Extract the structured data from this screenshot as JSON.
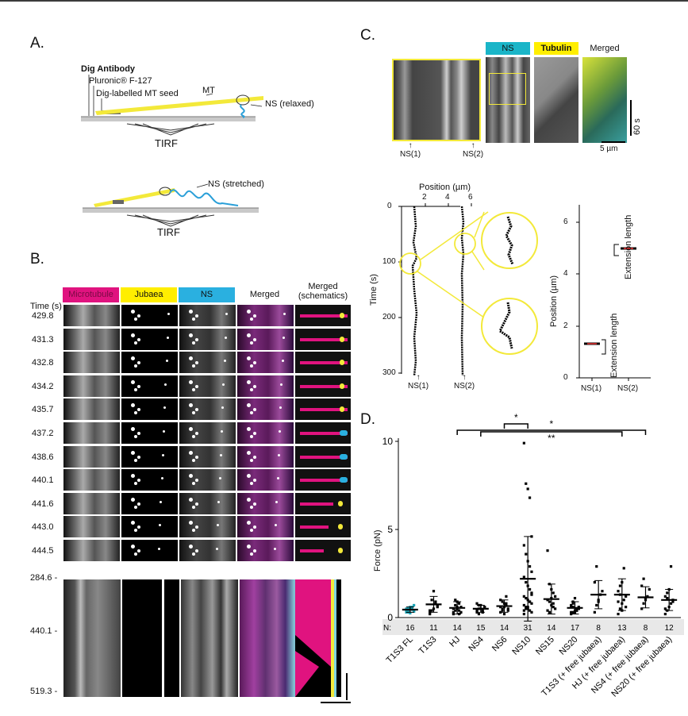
{
  "panelA": {
    "label": "A.",
    "dig_antibody": "Dig Antibody",
    "pluronic": "Pluronic® F-127",
    "mt_seed": "Dig-labelled MT seed",
    "mt": "MT",
    "ns_relaxed": "NS (relaxed)",
    "ns_stretched": "NS (stretched)",
    "tirf_top": "TIRF",
    "tirf_bottom": "TIRF"
  },
  "panelB": {
    "label": "B.",
    "time_header": "Time (s)",
    "columns": [
      "Microtubule",
      "Jubaea",
      "NS",
      "Merged",
      "Merged\n(schematics)"
    ],
    "column_colors": [
      "#e0137f",
      "#ffee00",
      "#2ab0e0",
      "#ffffff",
      "#ffffff"
    ],
    "times": [
      "429.8",
      "431.3",
      "432.8",
      "434.2",
      "435.7",
      "437.2",
      "438.6",
      "440.1",
      "441.6",
      "443.0",
      "444.5"
    ],
    "kymo_times": [
      "284.6",
      "440.1",
      "519.3"
    ]
  },
  "panelC": {
    "label": "C.",
    "channels": [
      "NS",
      "Tubulin",
      "Merged"
    ],
    "channel_colors": [
      "#1ab5c8",
      "#ffee00",
      "#ffffff"
    ],
    "ns1": "NS(1)",
    "ns2": "NS(2)",
    "scale_time": "60 s",
    "scale_length": "5 µm",
    "trace_plot": {
      "xlabel": "Position (µm)",
      "ylabel": "Time (s)",
      "xticks": [
        "2",
        "4",
        "6"
      ],
      "yticks": [
        "0",
        "100",
        "200",
        "300"
      ],
      "xlabels_bottom": [
        "NS(1)",
        "NS(2)"
      ]
    },
    "ext_plot": {
      "ylabel": "Position (µm)",
      "yticks": [
        "0",
        "2",
        "4",
        "6"
      ],
      "annot_top": "Extension length",
      "annot_bottom": "Extension length",
      "categories": [
        "NS(1)",
        "NS(2)"
      ]
    }
  },
  "panelD": {
    "label": "D.",
    "chart_data": {
      "type": "scatter",
      "ylabel": "Force (pN)",
      "ylim": [
        0,
        10
      ],
      "yticks": [
        "0",
        "5",
        "10"
      ],
      "n_label": "N:",
      "categories": [
        "T1S3 FL",
        "T1S3",
        "HJ",
        "NS4",
        "NS6",
        "NS10",
        "NS15",
        "NS20",
        "T1S3 (+ free jubaea)",
        "HJ (+ free jubaea)",
        "NS4 (+ free jubaea)",
        "NS20 (+ free jubaea)"
      ],
      "n": [
        "16",
        "11",
        "14",
        "15",
        "14",
        "31",
        "14",
        "17",
        "8",
        "13",
        "8",
        "12"
      ],
      "means": [
        0.45,
        0.75,
        0.55,
        0.5,
        0.65,
        2.2,
        1.05,
        0.55,
        1.3,
        1.3,
        1.15,
        1.0
      ],
      "sd": [
        0.15,
        0.45,
        0.35,
        0.2,
        0.35,
        2.4,
        0.85,
        0.35,
        0.8,
        0.9,
        0.6,
        0.6
      ],
      "points": [
        [
          0.3,
          0.4,
          0.5,
          0.6,
          0.35,
          0.45,
          0.55,
          0.25,
          0.5,
          0.7,
          0.4,
          0.3,
          0.6,
          0.45,
          0.35,
          0.5
        ],
        [
          0.2,
          0.4,
          1.5,
          0.8,
          0.6,
          0.3,
          1.0,
          0.5,
          0.9,
          0.7,
          0.4
        ],
        [
          0.2,
          0.4,
          0.6,
          0.8,
          0.3,
          0.5,
          0.7,
          0.9,
          0.4,
          0.6,
          0.3,
          1.0,
          0.5,
          0.2
        ],
        [
          0.3,
          0.5,
          0.7,
          0.4,
          0.6,
          0.8,
          0.2,
          0.5,
          0.3,
          0.6,
          0.4,
          0.7,
          0.5,
          0.3,
          0.6
        ],
        [
          0.3,
          0.5,
          0.8,
          1.2,
          0.4,
          0.6,
          0.9,
          0.2,
          0.7,
          0.5,
          1.0,
          0.4,
          0.6,
          0.8
        ],
        [
          9.9,
          7.6,
          7.3,
          6.8,
          4.6,
          4.1,
          3.6,
          3.2,
          2.9,
          2.6,
          2.3,
          2.0,
          1.8,
          1.6,
          1.4,
          1.2,
          1.1,
          1.0,
          0.9,
          0.8,
          0.7,
          0.6,
          0.5,
          0.4,
          0.3,
          0.2,
          0.5,
          0.6,
          0.9,
          1.3,
          0.4
        ],
        [
          3.8,
          1.9,
          1.6,
          1.4,
          1.2,
          1.0,
          0.9,
          0.7,
          0.6,
          0.5,
          0.4,
          0.3,
          1.1,
          0.8
        ],
        [
          0.2,
          0.3,
          0.4,
          0.5,
          0.6,
          0.7,
          0.8,
          0.3,
          0.4,
          0.5,
          0.6,
          0.9,
          1.1,
          0.4,
          0.5,
          0.3,
          0.6
        ],
        [
          0.3,
          0.7,
          1.0,
          1.3,
          1.5,
          2.0,
          2.9,
          0.9
        ],
        [
          0.2,
          0.5,
          0.8,
          1.0,
          1.2,
          1.5,
          1.8,
          2.0,
          2.8,
          0.6,
          0.9,
          1.3,
          0.4
        ],
        [
          0.5,
          0.8,
          1.0,
          1.2,
          1.6,
          1.8,
          2.2,
          1.1
        ],
        [
          0.2,
          0.4,
          0.6,
          0.8,
          1.0,
          1.2,
          1.4,
          1.6,
          2.9,
          0.9,
          0.5,
          1.1
        ]
      ],
      "significance": [
        {
          "from": "NS6",
          "to": "NS10",
          "label": "*"
        },
        {
          "from": "NS4",
          "to": "HJ (+ free jubaea)",
          "label": "**"
        },
        {
          "from": "HJ",
          "to": "NS4 (+ free jubaea)",
          "label": "*"
        }
      ]
    }
  }
}
